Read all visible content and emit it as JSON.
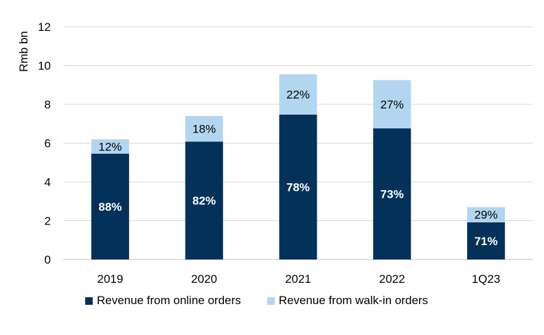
{
  "chart_data": {
    "type": "bar",
    "stacked": true,
    "ylabel": "Rmb bn",
    "ylim": [
      0,
      12
    ],
    "yticks": [
      0,
      2,
      4,
      6,
      8,
      10,
      12
    ],
    "grid": true,
    "legend_position": "bottom",
    "categories": [
      "2019",
      "2020",
      "2021",
      "2022",
      "1Q23"
    ],
    "series": [
      {
        "name": "Revenue from online orders",
        "color": "#03315a",
        "label_color": "#ffffff",
        "values": [
          5.46,
          6.08,
          7.47,
          6.76,
          1.92
        ],
        "labels": [
          "88%",
          "82%",
          "78%",
          "73%",
          "71%"
        ]
      },
      {
        "name": "Revenue from walk-in orders",
        "color": "#b3d6f0",
        "label_color": "#000000",
        "values": [
          0.74,
          1.32,
          2.08,
          2.49,
          0.78
        ],
        "labels": [
          "12%",
          "18%",
          "22%",
          "27%",
          "29%"
        ]
      }
    ]
  }
}
